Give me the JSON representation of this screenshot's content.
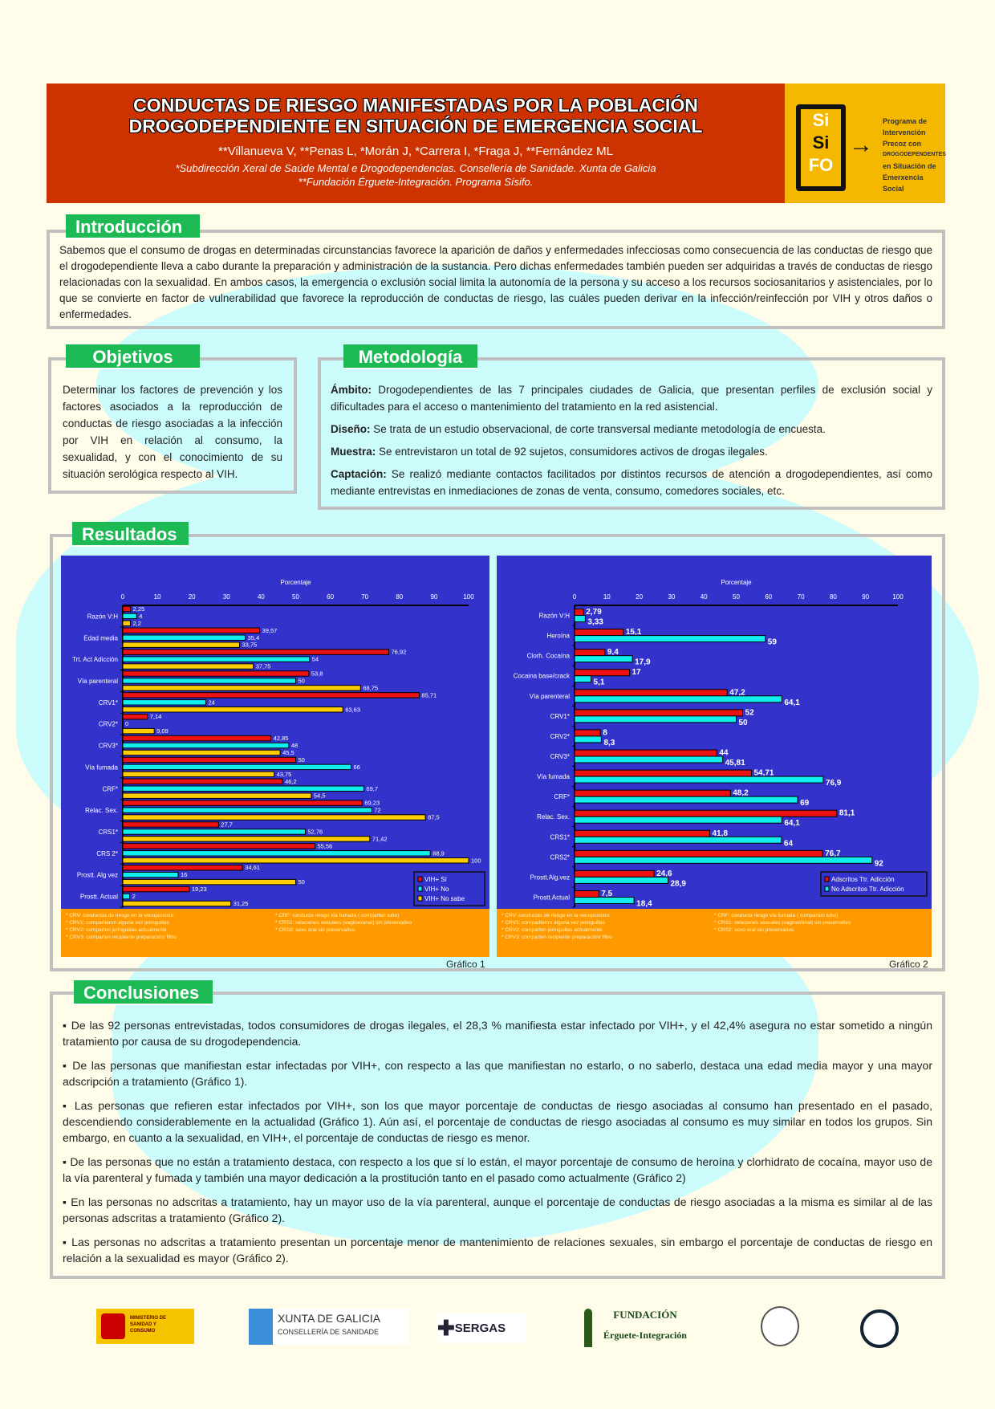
{
  "header": {
    "title_line1": "CONDUCTAS DE RIESGO MANIFESTADAS POR LA POBLACIÓN",
    "title_line2": "DROGODEPENDIENTE EN SITUACIÓN DE EMERGENCIA SOCIAL",
    "authors": "**Villanueva V, **Penas L, *Morán J, *Carrera I, *Fraga J, **Fernández ML",
    "affiliation1": "*Subdirección Xeral de Saúde Mental e Drogodependencias. Consellería de Sanidade. Xunta de Galicia",
    "affiliation2": "**Fundación Érguete-Integración. Programa Sísifo.",
    "logo_letters": [
      "Si",
      "Si",
      "FO"
    ],
    "logo_text": [
      "Programa de",
      "Intervención",
      "Precoz con",
      "DROGODEPENDENTES",
      "en Situación de",
      "Emerxencia Social"
    ]
  },
  "intro": {
    "label": "Introducción",
    "text": "Sabemos que el consumo de drogas en determinadas circunstancias favorece la aparición de daños y enfermedades infecciosas como consecuencia de las conductas de riesgo que el drogodependiente lleva a cabo durante la preparación y administración de la sustancia. Pero dichas enfermedades también pueden ser adquiridas a través de conductas de riesgo relacionadas con la sexualidad. En ambos casos, la emergencia o exclusión social limita la autonomía de la persona y su acceso a los recursos sociosanitarios y asistenciales, por lo que se convierte en factor de vulnerabilidad que favorece la reproducción de conductas de riesgo, las cuáles pueden derivar en la infección/reinfección por VIH y otros daños o enfermedades."
  },
  "objetivos": {
    "label": "Objetivos",
    "text": "Determinar los factores de prevención y los factores asociados a la reproducción de conductas de riesgo asociadas a la infección por VIH en relación al consumo, la sexualidad, y con el conocimiento de su situación serológica respecto al VIH."
  },
  "metodologia": {
    "label": "Metodología",
    "items": [
      {
        "term": "Ámbito:",
        "text": " Drogodependientes de las 7 principales ciudades de Galicia, que presentan perfiles de exclusión social y dificultades para el acceso o mantenimiento del tratamiento en la red asistencial."
      },
      {
        "term": "Diseño:",
        "text": " Se trata de un estudio observacional, de corte transversal mediante metodología de encuesta."
      },
      {
        "term": "Muestra:",
        "text": " Se entrevistaron un total de 92 sujetos, consumidores activos de drogas ilegales."
      },
      {
        "term": "Captación:",
        "text": " Se realizó mediante contactos facilitados por distintos recursos de atención a drogodependientes, así como mediante entrevistas en inmediaciones de zonas de venta, consumo, comedores sociales, etc."
      }
    ]
  },
  "resultados": {
    "label": "Resultados"
  },
  "footnotes": [
    "* CRV: conductas de riesgo en la venopunción.",
    "* CRV1: compartieron alguna vez jeringuillas",
    "* CRV2: comparten jeringuillas actualmente",
    "* CRV3: comparten recipiente preparación/ filtro",
    "* CRF: conducta riesgo vía fumada ( comparten tubo)",
    "* CRS1: relaciones sexuales (vaginal/anal) sin preservativo",
    "* CRS2: sexo oral sin preservativo."
  ],
  "chart_data": [
    {
      "type": "bar",
      "orientation": "horizontal",
      "caption": "Gráfico 1",
      "xlabel": "Porcentaje",
      "xlim": [
        0,
        100
      ],
      "ticks": [
        0,
        10,
        20,
        30,
        40,
        50,
        60,
        70,
        80,
        90,
        100
      ],
      "legend_position": "bottom-right",
      "categories": [
        "Razón V:H",
        "Edad media",
        "Trt. Act Adicción",
        "Vía parenteral",
        "CRV1*",
        "CRV2*",
        "CRV3*",
        "Vía fumada",
        "CRF*",
        "Relac. Sex.",
        "CRS1*",
        "CRS 2*",
        "Prostt. Alg vez",
        "Prostt. Actual"
      ],
      "series": [
        {
          "name": "VIH+ Sí",
          "color": "#ee1111",
          "values": [
            2.25,
            39.57,
            76.92,
            53.8,
            85.71,
            7.14,
            42.85,
            50,
            46.2,
            69.23,
            27.7,
            55.56,
            34.61,
            19.23
          ],
          "labels": [
            "2,25",
            "39,57",
            "76,92",
            "53,8",
            "85,71",
            "7,14",
            "42,85",
            "50",
            "46,2",
            "69,23",
            "27,7",
            "55,56",
            "34,61",
            "19,23"
          ]
        },
        {
          "name": "VIH+ No",
          "color": "#11eeee",
          "values": [
            4,
            35.4,
            54,
            50,
            24,
            0,
            48,
            66,
            69.7,
            72,
            52.76,
            88.9,
            16,
            2
          ],
          "labels": [
            "4",
            "35,4",
            "54",
            "50",
            "24",
            "0",
            "48",
            "66",
            "69,7",
            "72",
            "52,76",
            "88,9",
            "16",
            "2"
          ]
        },
        {
          "name": "VIH+ No sabe",
          "color": "#ffcc00",
          "values": [
            2.2,
            33.75,
            37.75,
            68.75,
            63.63,
            9.09,
            45.5,
            43.75,
            54.5,
            87.5,
            71.42,
            100,
            50,
            31.25
          ],
          "labels": [
            "2,2",
            "33,75",
            "37,75",
            "68,75",
            "63,63",
            "9,09",
            "45,5",
            "43,75",
            "54,5",
            "87,5",
            "71,42",
            "100",
            "50",
            "31,25"
          ]
        }
      ]
    },
    {
      "type": "bar",
      "orientation": "horizontal",
      "caption": "Gráfico 2",
      "xlabel": "Porcentaje",
      "xlim": [
        0,
        100
      ],
      "ticks": [
        0,
        10,
        20,
        30,
        40,
        50,
        60,
        70,
        80,
        90,
        100
      ],
      "legend_position": "bottom-right",
      "categories": [
        "Razón V:H",
        "Heroína",
        "Clorh. Cocaína",
        "Cocaina base/crack",
        "Vía parenteral",
        "CRV1*",
        "CRV2*",
        "CRV3*",
        "Vía fumada",
        "CRF*",
        "Relac. Sex.",
        "CRS1*",
        "CRS2*",
        "Prostt.Alg.vez",
        "Prostt.Actual"
      ],
      "series": [
        {
          "name": "Adscritos Ttr. Adicción",
          "color": "#ee1111",
          "values": [
            2.79,
            15.1,
            9.4,
            17,
            47.2,
            52,
            8,
            44,
            54.71,
            48.2,
            81.1,
            41.8,
            76.7,
            24.6,
            7.5
          ],
          "labels": [
            "2,79",
            "15,1",
            "9,4",
            "17",
            "47,2",
            "52",
            "8",
            "44",
            "54,71",
            "48,2",
            "81,1",
            "41,8",
            "76,7",
            "24,6",
            "7,5"
          ]
        },
        {
          "name": "No Adscritos Ttr. Adicción",
          "color": "#11eeee",
          "values": [
            3.33,
            59,
            17.9,
            5.1,
            64.1,
            50,
            8.3,
            45.81,
            76.9,
            69,
            64.1,
            64,
            92,
            28.9,
            18.4
          ],
          "labels": [
            "3,33",
            "59",
            "17,9",
            "5,1",
            "64,1",
            "50",
            "8,3",
            "45,81",
            "76,9",
            "69",
            "64,1",
            "64",
            "92",
            "28,9",
            "18,4"
          ]
        }
      ]
    }
  ],
  "conclusiones": {
    "label": "Conclusiones",
    "items": [
      "▪ De las 92 personas entrevistadas, todos consumidores de drogas ilegales, el 28,3 % manifiesta estar infectado por VIH+, y el 42,4% asegura no estar sometido a ningún tratamiento por causa de su drogodependencia.",
      "▪ De las personas que manifiestan estar infectadas por VIH+, con respecto a las que manifiestan no estarlo, o no saberlo, destaca una edad media mayor y una mayor adscripción a tratamiento (Gráfico 1).",
      "▪ Las personas que refieren estar infectados por VIH+, son los que mayor porcentaje de conductas de riesgo asociadas al consumo han presentado en el pasado, descendiendo considerablemente en la actualidad (Gráfico 1). Aún así,  el porcentaje de conductas de riesgo asociadas al consumo es muy similar en todos los grupos. Sin embargo, en cuanto a la sexualidad, en VIH+, el porcentaje  de conductas de riesgo es menor.",
      "▪ De las personas que no están a tratamiento destaca, con respecto a los que sí lo están, el mayor porcentaje de consumo de heroína y clorhidrato de  cocaína, mayor uso de la vía parenteral y fumada y también una mayor dedicación a la prostitución tanto en el pasado como actualmente (Gráfico 2)",
      "▪ En las personas no adscritas a tratamiento, hay un mayor uso de la vía parenteral, aunque el porcentaje de conductas de riesgo asociadas a la misma es similar al de las personas adscritas a tratamiento (Gráfico 2).",
      "▪ Las personas no adscritas a tratamiento presentan un porcentaje menor de mantenimiento de relaciones sexuales, sin embargo el porcentaje de conductas de riesgo en relación a la sexualidad es mayor (Gráfico 2)."
    ]
  },
  "logos": {
    "ministerio": "MINISTERIO DE SANIDAD Y CONSUMO",
    "xunta_1": "XUNTA DE GALICIA",
    "xunta_2": "CONSELLERÍA DE SANIDADE",
    "sergas": "SERGAS",
    "fundacion_1": "FUNDACIÓN",
    "fundacion_2": "Érguete-Integración"
  }
}
